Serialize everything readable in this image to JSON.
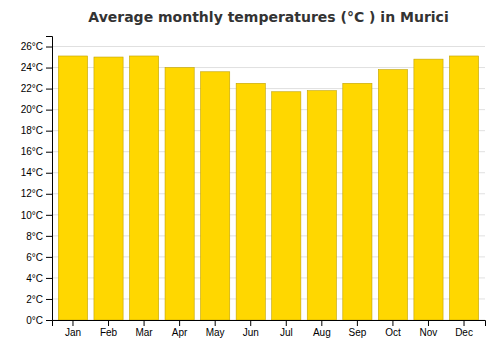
{
  "chart_data": {
    "type": "bar",
    "title": "Average monthly temperatures (°C ) in Murici",
    "categories": [
      "Jan",
      "Feb",
      "Mar",
      "Apr",
      "May",
      "Jun",
      "Jul",
      "Aug",
      "Sep",
      "Oct",
      "Nov",
      "Dec"
    ],
    "values": [
      25.1,
      25.0,
      25.1,
      24.0,
      23.6,
      22.5,
      21.7,
      21.8,
      22.5,
      23.8,
      24.8,
      25.1
    ],
    "color": "#FFD700",
    "ylim": [
      0,
      27
    ],
    "yticks": [
      {
        "value": 0,
        "label": "0°C"
      },
      {
        "value": 2,
        "label": "2°C"
      },
      {
        "value": 4,
        "label": "4°C"
      },
      {
        "value": 6,
        "label": "6°C"
      },
      {
        "value": 8,
        "label": "8°C"
      },
      {
        "value": 10,
        "label": "10°C"
      },
      {
        "value": 12,
        "label": "12°C"
      },
      {
        "value": 14,
        "label": "14°C"
      },
      {
        "value": 16,
        "label": "16°C"
      },
      {
        "value": 18,
        "label": "18°C"
      },
      {
        "value": 20,
        "label": "20°C"
      },
      {
        "value": 22,
        "label": "22°C"
      },
      {
        "value": 24,
        "label": "24°C"
      },
      {
        "value": 26,
        "label": "26°C"
      }
    ],
    "grid": true
  }
}
